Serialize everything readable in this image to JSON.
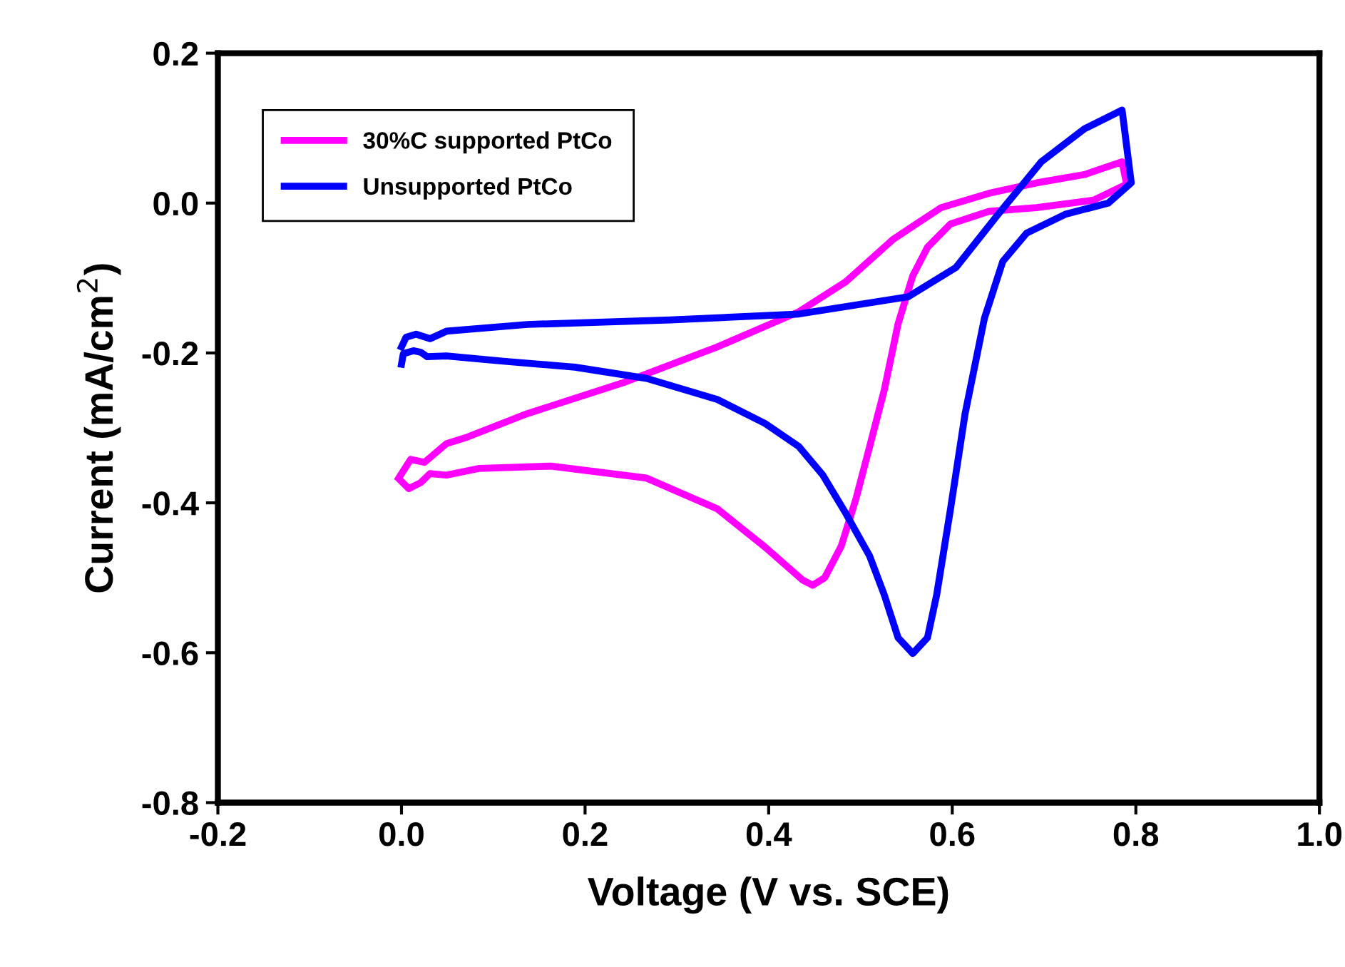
{
  "chart_data": {
    "type": "line",
    "xlabel": "Voltage (V vs. SCE)",
    "ylabel": "Current (mA/cm$^{2}$)",
    "xlim": [
      -0.2,
      1.0
    ],
    "ylim": [
      -0.8,
      0.2
    ],
    "xticks": [
      {
        "value": -0.2,
        "label": "-0.2"
      },
      {
        "value": 0.0,
        "label": "0.0"
      },
      {
        "value": 0.2,
        "label": "0.2"
      },
      {
        "value": 0.4,
        "label": "0.4"
      },
      {
        "value": 0.6,
        "label": "0.6"
      },
      {
        "value": 0.8,
        "label": "0.8"
      },
      {
        "value": 1.0,
        "label": "1.0"
      }
    ],
    "yticks": [
      {
        "value": -0.8,
        "label": "-0.8"
      },
      {
        "value": -0.6,
        "label": "-0.6"
      },
      {
        "value": -0.4,
        "label": "-0.4"
      },
      {
        "value": -0.2,
        "label": "-0.2"
      },
      {
        "value": 0.0,
        "label": "0.0"
      },
      {
        "value": 0.2,
        "label": "0.2"
      }
    ],
    "grid": false,
    "legend": "top left",
    "marker": "none",
    "line_style": "solid",
    "series": [
      {
        "name": "30%C supported PtCo",
        "color": "#ff00ff",
        "x": [
          -0.003,
          0.01,
          0.025,
          0.049,
          0.07,
          0.137,
          0.241,
          0.344,
          0.433,
          0.484,
          0.536,
          0.588,
          0.64,
          0.692,
          0.744,
          0.785,
          0.79,
          0.754,
          0.692,
          0.64,
          0.598,
          0.573,
          0.557,
          0.541,
          0.526,
          0.51,
          0.495,
          0.479,
          0.461,
          0.448,
          0.437,
          0.396,
          0.344,
          0.267,
          0.163,
          0.085,
          0.049,
          0.031,
          0.021,
          0.008,
          -0.002
        ],
        "values": [
          -0.367,
          -0.342,
          -0.346,
          -0.321,
          -0.313,
          -0.281,
          -0.24,
          -0.192,
          -0.145,
          -0.105,
          -0.048,
          -0.006,
          0.013,
          0.027,
          0.038,
          0.055,
          0.025,
          0.004,
          -0.006,
          -0.011,
          -0.028,
          -0.059,
          -0.097,
          -0.161,
          -0.249,
          -0.325,
          -0.395,
          -0.458,
          -0.5,
          -0.51,
          -0.503,
          -0.459,
          -0.408,
          -0.367,
          -0.351,
          -0.354,
          -0.363,
          -0.361,
          -0.373,
          -0.381,
          -0.369
        ]
      },
      {
        "name": "Unsupported PtCo",
        "color": "#0000ff",
        "x": [
          0.0,
          0.005,
          0.016,
          0.031,
          0.049,
          0.137,
          0.293,
          0.433,
          0.552,
          0.604,
          0.65,
          0.697,
          0.744,
          0.785,
          0.795,
          0.77,
          0.723,
          0.681,
          0.655,
          0.635,
          0.614,
          0.598,
          0.583,
          0.573,
          0.557,
          0.541,
          0.526,
          0.51,
          0.484,
          0.459,
          0.433,
          0.396,
          0.344,
          0.267,
          0.189,
          0.111,
          0.049,
          0.028,
          0.021,
          0.013,
          0.002,
          0.0
        ],
        "values": [
          -0.192,
          -0.179,
          -0.175,
          -0.181,
          -0.171,
          -0.162,
          -0.156,
          -0.148,
          -0.125,
          -0.086,
          -0.015,
          0.055,
          0.099,
          0.124,
          0.027,
          0.0,
          -0.015,
          -0.04,
          -0.078,
          -0.154,
          -0.281,
          -0.409,
          -0.523,
          -0.58,
          -0.601,
          -0.58,
          -0.523,
          -0.471,
          -0.414,
          -0.363,
          -0.325,
          -0.294,
          -0.262,
          -0.234,
          -0.219,
          -0.211,
          -0.204,
          -0.205,
          -0.199,
          -0.197,
          -0.201,
          -0.215
        ]
      }
    ]
  }
}
